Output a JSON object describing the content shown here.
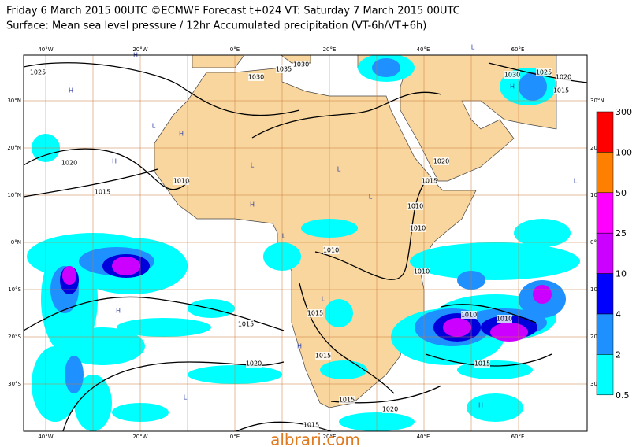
{
  "header": {
    "title": "Friday 6 March 2015 00UTC ©ECMWF Forecast t+024 VT: Saturday 7 March 2015 00UTC",
    "subtitle": "Surface: Mean sea level pressure / 12hr Accumulated precipitation (VT-6h/VT+6h)"
  },
  "map": {
    "longitude_labels": [
      "40°W",
      "20°W",
      "0°E",
      "20°E",
      "40°E",
      "60°E"
    ],
    "latitude_labels": [
      "30°N",
      "20°N",
      "10°N",
      "0°N",
      "10°S",
      "20°S",
      "30°S"
    ],
    "isobar_labels": [
      "1025",
      "1020",
      "1015",
      "1010",
      "1030",
      "1035",
      "1030",
      "1030",
      "1025",
      "1020",
      "1015",
      "1020",
      "1015",
      "1010",
      "1010",
      "1010",
      "1010",
      "1015",
      "1015",
      "1020",
      "1015",
      "1010",
      "1010",
      "1015",
      "1015",
      "1020",
      "1015"
    ],
    "pressure_centers": [
      "H",
      "H",
      "L",
      "H",
      "L",
      "H",
      "L",
      "L",
      "H",
      "L",
      "L",
      "H",
      "L",
      "H",
      "L",
      "H",
      "L",
      "H"
    ]
  },
  "colorbar": {
    "levels": [
      300,
      100,
      50,
      25,
      10,
      4,
      2,
      0.5
    ]
  },
  "watermark": "albrari.com"
}
